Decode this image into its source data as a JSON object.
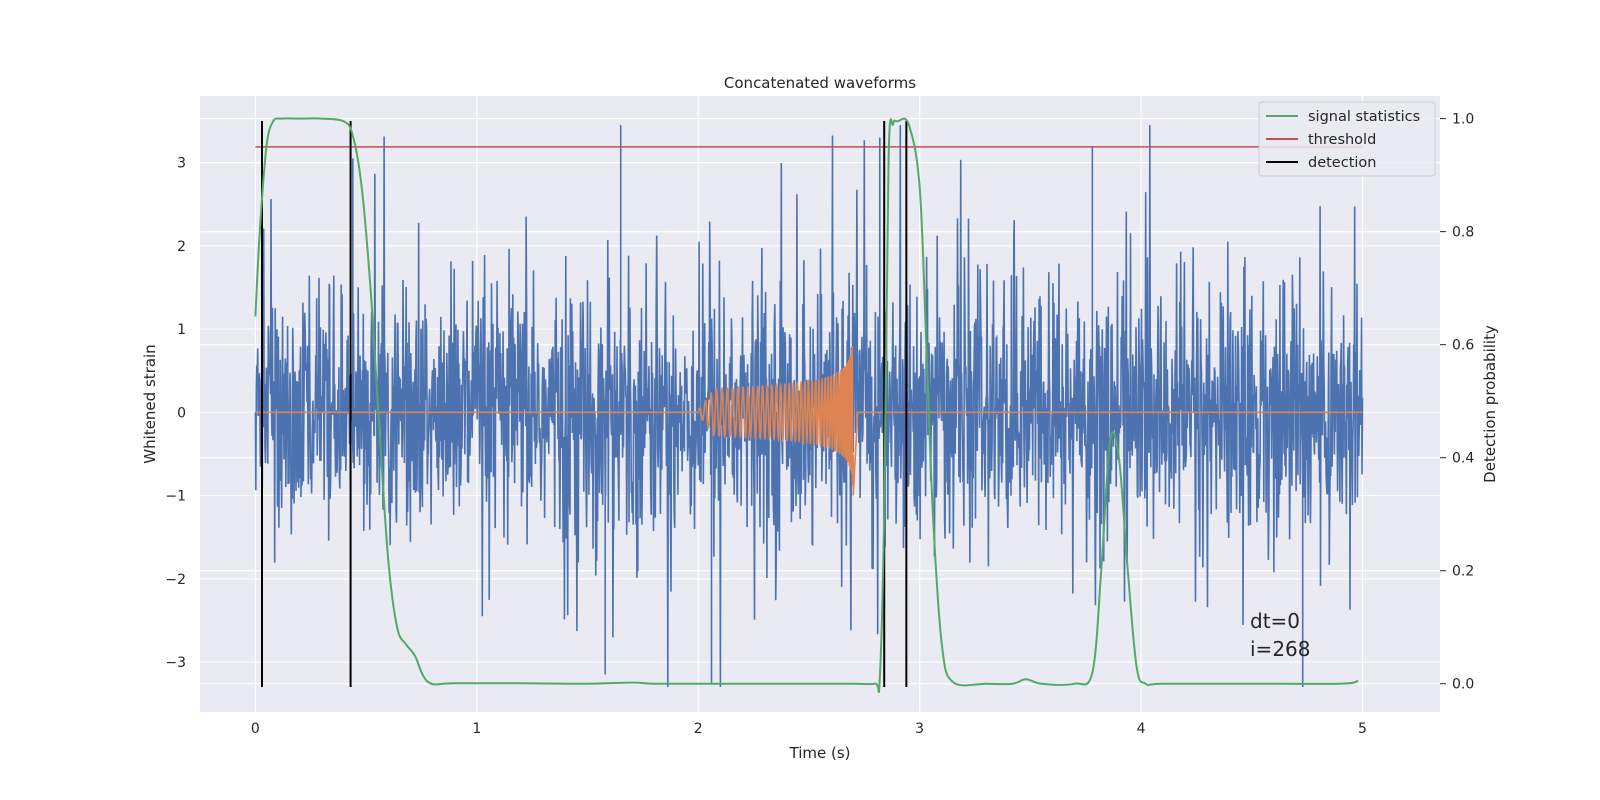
{
  "chart_data": {
    "type": "line",
    "title": "Concatenated waveforms",
    "xlabel": "Time (s)",
    "ylabel": "Whitened strain",
    "y2label": "Detection probability",
    "xlim": [
      -0.25,
      5.35
    ],
    "ylim": [
      -3.6,
      3.8
    ],
    "y2lim": [
      -0.05,
      1.04
    ],
    "x_ticks": [
      0,
      1,
      2,
      3,
      4,
      5
    ],
    "x_tick_labels": [
      "0",
      "1",
      "2",
      "3",
      "4",
      "5"
    ],
    "y_ticks": [
      -3,
      -2,
      -1,
      0,
      1,
      2,
      3
    ],
    "y_tick_labels": [
      "−3",
      "−2",
      "−1",
      "0",
      "1",
      "2",
      "3"
    ],
    "y2_ticks": [
      0.0,
      0.2,
      0.4,
      0.6,
      0.8,
      1.0
    ],
    "y2_tick_labels": [
      "0.0",
      "0.2",
      "0.4",
      "0.6",
      "0.8",
      "1.0"
    ],
    "grid": true,
    "legend_position": "top-right",
    "legend": [
      "signal statistics",
      "threshold",
      "detection"
    ],
    "annotations": [
      "dt=0",
      "i=268"
    ],
    "colors": {
      "strain": "#4c72b0",
      "injected_waveform": "#dd8452",
      "signal_statistics": "#55a868",
      "threshold": "#c44e52",
      "detection": "#000000",
      "plot_background": "#eaeaf2",
      "grid": "#ffffff"
    },
    "series": [
      {
        "description_axis": "left",
        "kind": "noise",
        "x_range": [
          0,
          5
        ],
        "amplitude_envelope": 1.4,
        "peak_max": 3.45,
        "peak_min": -3.3
      },
      {
        "description_axis": "left",
        "kind": "chirp",
        "x_range": [
          0,
          5
        ],
        "chirp_start": 2.0,
        "chirp_merger": 2.7,
        "amplitude_at_merger": 1.0
      },
      {
        "name": "signal statistics",
        "axis": "right",
        "x": [
          0.0,
          0.02,
          0.05,
          0.08,
          0.12,
          0.2,
          0.3,
          0.4,
          0.44,
          0.48,
          0.52,
          0.56,
          0.6,
          0.64,
          0.68,
          0.72,
          0.78,
          0.9,
          1.2,
          1.5,
          1.7,
          1.8,
          2.0,
          2.5,
          2.7,
          2.8,
          2.82,
          2.84,
          2.86,
          2.88,
          2.9,
          2.95,
          3.0,
          3.03,
          3.06,
          3.1,
          3.15,
          3.3,
          3.42,
          3.48,
          3.55,
          3.7,
          3.78,
          3.82,
          3.86,
          3.9,
          3.94,
          3.98,
          4.02,
          4.1,
          4.5,
          4.9,
          4.98
        ],
        "y": [
          0.65,
          0.8,
          0.95,
          0.995,
          1.0,
          1.0,
          1.0,
          0.995,
          0.97,
          0.88,
          0.7,
          0.45,
          0.22,
          0.1,
          0.07,
          0.05,
          0.003,
          0.001,
          0.001,
          0.0,
          0.002,
          0.0,
          0.0,
          0.0,
          0.0,
          0.0,
          0.01,
          0.3,
          0.93,
          0.99,
          0.995,
          0.99,
          0.88,
          0.6,
          0.3,
          0.07,
          0.003,
          0.0,
          0.0,
          0.008,
          0.0,
          0.0,
          0.02,
          0.2,
          0.43,
          0.4,
          0.2,
          0.03,
          0.0,
          0.0,
          0.0,
          0.0,
          0.005
        ]
      },
      {
        "name": "threshold",
        "axis": "right",
        "value": 0.95,
        "x_range": [
          0,
          5
        ]
      },
      {
        "name": "detection",
        "axis": "left",
        "x": [
          0.03,
          0.43,
          2.84,
          2.94
        ],
        "y_range": [
          -3.3,
          3.5
        ]
      }
    ]
  }
}
